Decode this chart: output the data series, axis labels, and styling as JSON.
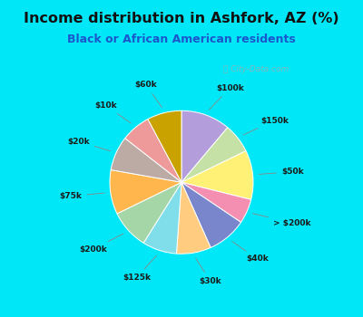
{
  "title": "Income distribution in Ashfork, AZ (%)",
  "subtitle": "Black or African American residents",
  "bg_outer": "#00e8f8",
  "bg_chart": "#ddf0e4",
  "title_color": "#111111",
  "subtitle_color": "#1a56cc",
  "watermark": "City-Data.com",
  "slices": [
    {
      "label": "$100k",
      "value": 10,
      "color": "#b39ddb"
    },
    {
      "label": "$150k",
      "value": 6,
      "color": "#c5e1a5"
    },
    {
      "label": "$50k",
      "value": 10,
      "color": "#fff176"
    },
    {
      "label": "> $200k",
      "value": 5,
      "color": "#f48fb1"
    },
    {
      "label": "$40k",
      "value": 8,
      "color": "#7986cb"
    },
    {
      "label": "$30k",
      "value": 7,
      "color": "#ffcc80"
    },
    {
      "label": "$125k",
      "value": 7,
      "color": "#80deea"
    },
    {
      "label": "$200k",
      "value": 8,
      "color": "#a5d6a7"
    },
    {
      "label": "$75k",
      "value": 9,
      "color": "#ffb74d"
    },
    {
      "label": "$20k",
      "value": 7,
      "color": "#bcaaa4"
    },
    {
      "label": "$10k",
      "value": 6,
      "color": "#ef9a9a"
    },
    {
      "label": "$60k",
      "value": 7,
      "color": "#c9a200"
    }
  ],
  "start_angle": 90,
  "label_fontsize": 6.5,
  "title_fontsize": 11.5,
  "subtitle_fontsize": 9
}
